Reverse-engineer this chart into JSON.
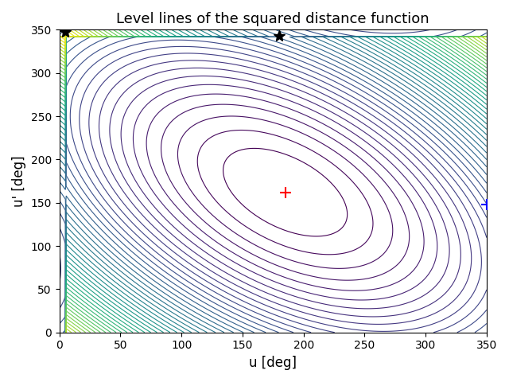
{
  "title": "Level lines of the squared distance function",
  "xlabel": "u [deg]",
  "ylabel": "u' [deg]",
  "xlim": [
    0,
    350
  ],
  "ylim": [
    0,
    350
  ],
  "xticks": [
    0,
    50,
    100,
    150,
    200,
    250,
    300,
    350
  ],
  "yticks": [
    0,
    50,
    100,
    150,
    200,
    250,
    300,
    350
  ],
  "red_marker": [
    185,
    162
  ],
  "blue_marker": [
    350,
    148
  ],
  "star1": [
    5,
    348
  ],
  "star2": [
    180,
    343
  ],
  "n_levels": 50,
  "colormap": "viridis",
  "resolution": 500,
  "u0": 185,
  "v0": 162,
  "period": 360,
  "figsize": [
    6.4,
    4.8
  ],
  "dpi": 100
}
